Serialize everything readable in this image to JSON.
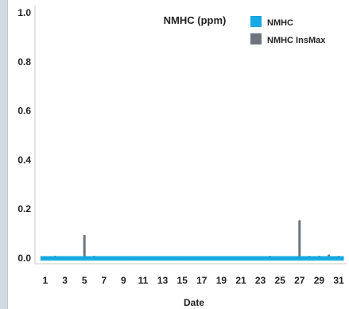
{
  "chart_data": {
    "type": "bar",
    "title": "NMHC (ppm)",
    "xlabel": "Date",
    "ylabel": "",
    "ylim": [
      0,
      1.0
    ],
    "y_ticks": [
      "0.0",
      "0.2",
      "0.4",
      "0.6",
      "0.8",
      "1.0"
    ],
    "x_tick_labels": [
      "1",
      "3",
      "5",
      "7",
      "9",
      "11",
      "13",
      "15",
      "17",
      "19",
      "21",
      "23",
      "25",
      "27",
      "29",
      "31"
    ],
    "x": [
      1,
      2,
      3,
      4,
      5,
      6,
      7,
      8,
      9,
      10,
      11,
      12,
      13,
      14,
      15,
      16,
      17,
      18,
      19,
      20,
      21,
      22,
      23,
      24,
      25,
      26,
      27,
      28,
      29,
      30,
      31
    ],
    "grid": false,
    "legend_position": "top-right",
    "series": [
      {
        "name": "NMHC",
        "color": "#17a9e1",
        "values": [
          0.005,
          0.005,
          0.005,
          0.005,
          0.005,
          0.005,
          0.005,
          0.005,
          0.005,
          0.005,
          0.005,
          0.005,
          0.005,
          0.005,
          0.005,
          0.005,
          0.005,
          0.005,
          0.005,
          0.005,
          0.005,
          0.005,
          0.005,
          0.005,
          0.005,
          0.005,
          0.005,
          0.005,
          0.005,
          0.005,
          0.005
        ]
      },
      {
        "name": "NMHC InsMax",
        "color": "#6b7580",
        "values": [
          0.0,
          0.01,
          0.0,
          0.0,
          0.095,
          0.01,
          0.0,
          0.005,
          0.0,
          0.0,
          0.0,
          0.0,
          0.0,
          0.0,
          0.0,
          0.0,
          0.0,
          0.0,
          0.0,
          0.0,
          0.005,
          0.0,
          0.0,
          0.01,
          0.0,
          0.0,
          0.155,
          0.01,
          0.01,
          0.015,
          0.01
        ]
      }
    ]
  }
}
